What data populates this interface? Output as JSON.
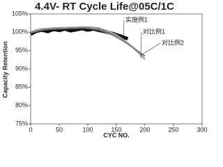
{
  "chart_data": {
    "type": "line",
    "title": "4.4V- RT Cycle Life@05C/1C",
    "x_label": "CYC NO.",
    "y_label": "Capacity Retention",
    "xlim": [
      0,
      300
    ],
    "xticks": [
      0,
      50,
      100,
      150,
      200,
      250,
      300
    ],
    "ylim": [
      75,
      105
    ],
    "yticks": [
      {
        "value": 75,
        "label": "75%"
      },
      {
        "value": 80,
        "label": "80%"
      },
      {
        "value": 85,
        "label": "85%"
      },
      {
        "value": 90,
        "label": "90%"
      },
      {
        "value": 95,
        "label": "95%"
      },
      {
        "value": 100,
        "label": "100%"
      },
      {
        "value": 105,
        "label": "105%"
      }
    ],
    "series": [
      {
        "name": "实施例1",
        "color": "#111111",
        "width": 5,
        "x": [
          0,
          10,
          20,
          30,
          40,
          50,
          60,
          70,
          80,
          90,
          100,
          110,
          120,
          130,
          140,
          150,
          160,
          170
        ],
        "values": [
          99.5,
          100.3,
          100.6,
          100.2,
          100.8,
          100.5,
          100.9,
          100.4,
          100.7,
          101,
          100.6,
          100.9,
          100.5,
          100.2,
          99.8,
          99.3,
          98.8,
          98.2
        ]
      },
      {
        "name": "对比例1",
        "color": "#a0a0a0",
        "width": 2.5,
        "x": [
          0,
          10,
          20,
          30,
          40,
          50,
          60,
          70,
          80,
          90,
          100,
          110,
          120,
          130,
          140,
          150,
          160,
          170,
          180,
          190,
          200
        ],
        "values": [
          100,
          100.6,
          100.9,
          101,
          101.1,
          101.2,
          101.2,
          101.3,
          101.3,
          101.4,
          101.4,
          101.3,
          101.1,
          100.6,
          100,
          99.2,
          98.2,
          97,
          95.7,
          94.2,
          92.6
        ]
      },
      {
        "name": "对比例2",
        "color": "#7a7a7a",
        "width": 2,
        "x": [
          0,
          10,
          20,
          30,
          40,
          50,
          60,
          70,
          80,
          90,
          100,
          110,
          120,
          130,
          140,
          150,
          160,
          170,
          180,
          190,
          200
        ],
        "values": [
          99.8,
          100.3,
          100.6,
          100.8,
          100.9,
          101,
          101,
          101.1,
          101.1,
          101.2,
          101.1,
          100.9,
          100.6,
          100.1,
          99.5,
          98.7,
          97.8,
          96.8,
          95.7,
          94.6,
          93.5
        ]
      }
    ]
  }
}
